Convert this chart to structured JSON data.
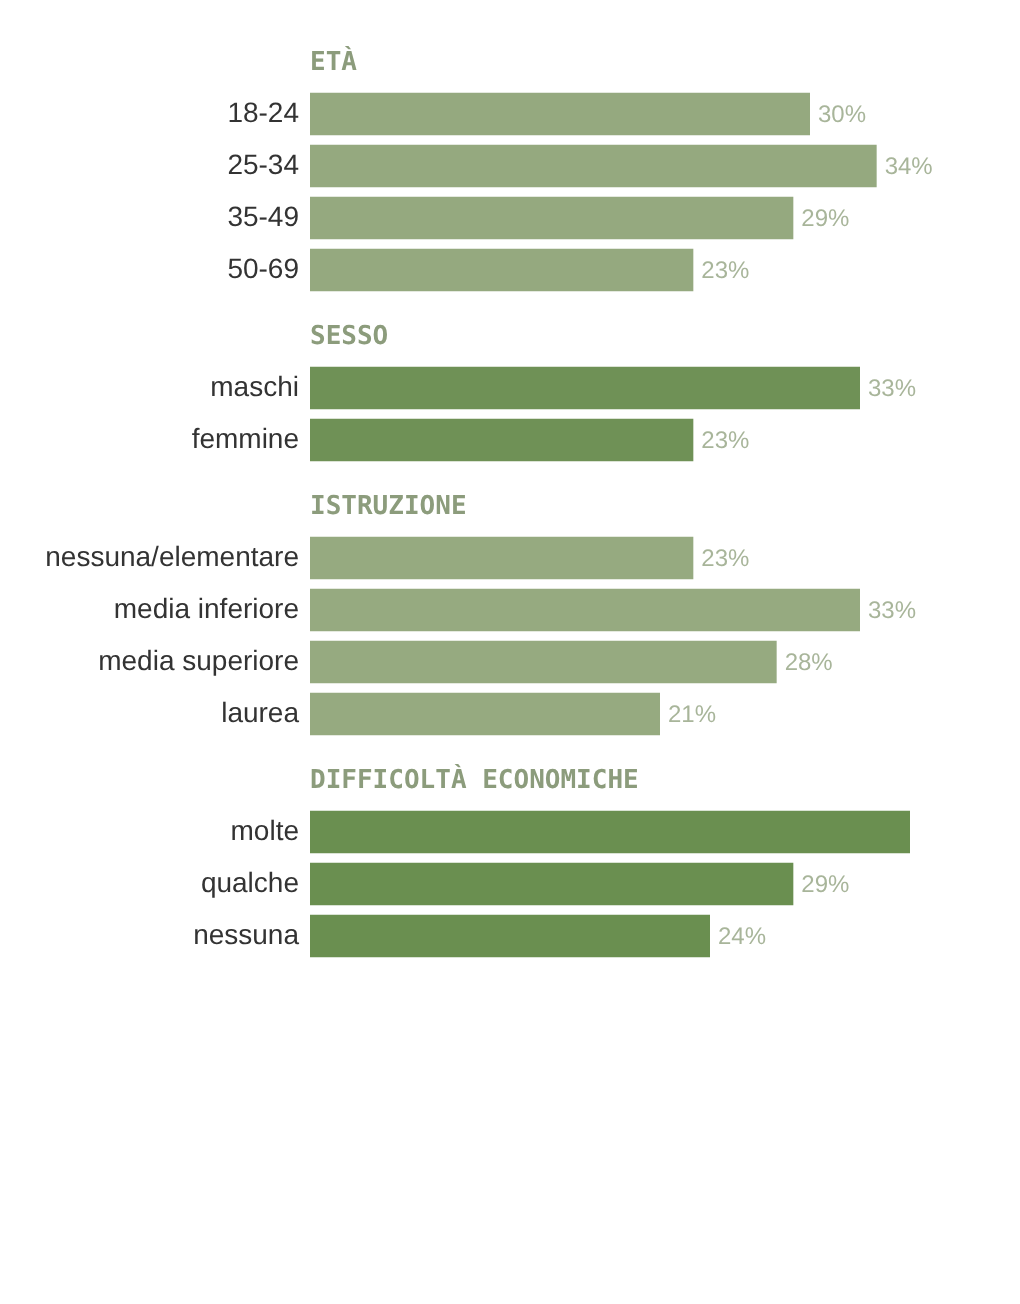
{
  "chart_data": [
    {
      "type": "bar",
      "orientation": "horizontal",
      "title": "ETÀ",
      "categories": [
        "18-24",
        "25-34",
        "35-49",
        "50-69"
      ],
      "values": [
        30,
        34,
        29,
        23
      ],
      "value_labels": [
        "30%",
        "34%",
        "29%",
        "23%"
      ],
      "color": "#95a97f"
    },
    {
      "type": "bar",
      "orientation": "horizontal",
      "title": "SESSO",
      "categories": [
        "maschi",
        "femmine"
      ],
      "values": [
        33,
        23
      ],
      "value_labels": [
        "33%",
        "23%"
      ],
      "color": "#6f9156"
    },
    {
      "type": "bar",
      "orientation": "horizontal",
      "title": "ISTRUZIONE",
      "categories": [
        "nessuna/elementare",
        "media inferiore",
        "media superiore",
        "laurea"
      ],
      "values": [
        23,
        33,
        28,
        21
      ],
      "value_labels": [
        "23%",
        "33%",
        "28%",
        "21%"
      ],
      "color": "#96aa80"
    },
    {
      "type": "bar",
      "orientation": "horizontal",
      "title": "DIFFICOLTÀ ECONOMICHE",
      "categories": [
        "molte",
        "qualche",
        "nessuna"
      ],
      "values": [
        36,
        29,
        24
      ],
      "value_labels": [
        null,
        "29%",
        "24%"
      ],
      "color": "#6a8f50"
    }
  ]
}
